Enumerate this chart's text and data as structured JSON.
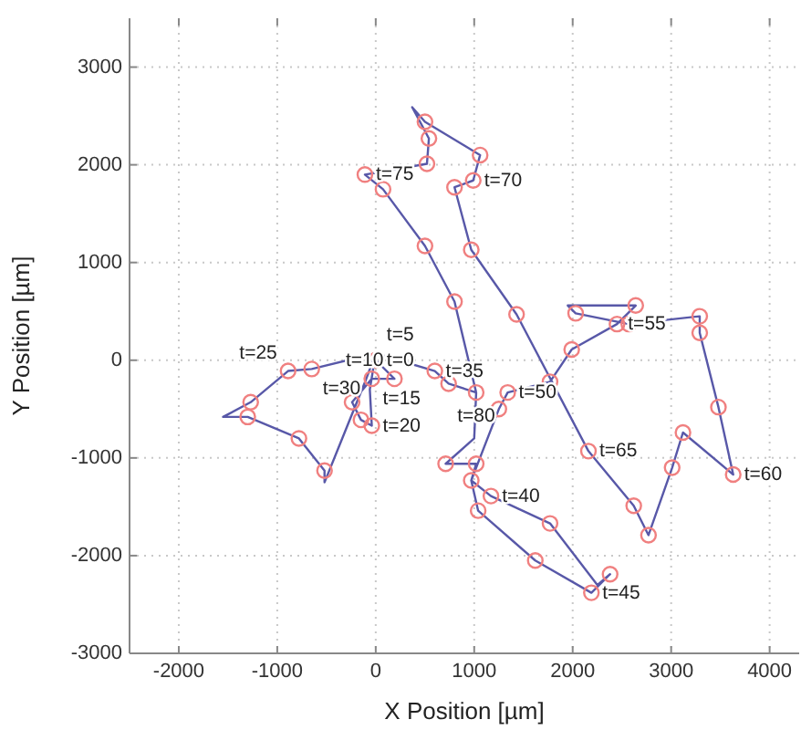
{
  "chart_data": {
    "type": "line",
    "xlabel": "X Position [µm]",
    "ylabel": "Y Position [µm]",
    "xlim": [
      -2500,
      4300
    ],
    "ylim": [
      -3000,
      3500
    ],
    "xticks": [
      -2000,
      -1000,
      0,
      1000,
      2000,
      3000,
      4000
    ],
    "yticks": [
      -3000,
      -2000,
      -1000,
      0,
      1000,
      2000,
      3000
    ],
    "grid": true,
    "series": [
      {
        "color": "#5858a8",
        "marker": "none",
        "line_style": "solid",
        "x": [
          0,
          190,
          -40,
          -240,
          -150,
          -40,
          -60,
          0,
          -650,
          -890,
          -1270,
          -1550,
          -1300,
          -780,
          -520,
          -520,
          -300,
          -100,
          0,
          600,
          740,
          1020,
          1000,
          710,
          1020,
          970,
          1040,
          1620,
          2190,
          2380,
          2250,
          1770,
          1170,
          970,
          1250,
          1340,
          1770,
          1990,
          2450,
          2640,
          1950,
          2030,
          2570,
          3290,
          3290,
          3480,
          3630,
          3120,
          3010,
          2770,
          2620,
          2160,
          1430,
          970,
          800,
          990,
          1060,
          500,
          370,
          540,
          520,
          -110,
          74,
          500,
          800,
          1020
        ],
        "values": [
          0,
          -190,
          -190,
          -430,
          -610,
          -670,
          -300,
          70,
          -90,
          -110,
          -430,
          -580,
          -580,
          -800,
          -1130,
          -1250,
          -700,
          -200,
          70,
          -110,
          -240,
          -330,
          -800,
          -1060,
          -1060,
          -1230,
          -1540,
          -2050,
          -2380,
          -2190,
          -2300,
          -1670,
          -1390,
          -1230,
          -500,
          -330,
          -220,
          110,
          370,
          560,
          560,
          480,
          370,
          450,
          280,
          -480,
          -1170,
          -740,
          -1100,
          -1790,
          -1490,
          -930,
          470,
          1130,
          1770,
          1840,
          2100,
          2440,
          2590,
          2270,
          2010,
          1900,
          1750,
          1170,
          600,
          -330
        ]
      },
      {
        "type": "scatter",
        "color": "#f08080",
        "marker": "circle",
        "x": [
          0,
          190,
          -40,
          -240,
          -150,
          -40,
          -650,
          -890,
          -1270,
          -1300,
          -780,
          -520,
          600,
          740,
          1020,
          1250,
          1340,
          1770,
          1990,
          2030,
          2450,
          2570,
          2640,
          3290,
          3290,
          3480,
          3630,
          3120,
          3010,
          2770,
          2620,
          2160,
          2190,
          2380,
          1620,
          1770,
          1040,
          1170,
          970,
          710,
          1020,
          1430,
          800,
          500,
          970,
          500,
          540,
          1060,
          520,
          -110,
          74,
          800,
          990
        ],
        "values": [
          0,
          -190,
          -190,
          -430,
          -610,
          -670,
          -90,
          -110,
          -430,
          -580,
          -800,
          -1130,
          -110,
          -240,
          -330,
          -500,
          -330,
          -220,
          110,
          480,
          370,
          370,
          560,
          450,
          280,
          -480,
          -1170,
          -740,
          -1100,
          -1790,
          -1490,
          -930,
          -2380,
          -2190,
          -2050,
          -1670,
          -1540,
          -1390,
          -1230,
          -1060,
          -1060,
          470,
          600,
          1170,
          1130,
          2440,
          2270,
          2100,
          2010,
          1900,
          1750,
          1770,
          1840
        ]
      }
    ],
    "annotations": [
      {
        "text": "t=0",
        "x": 0,
        "y": 0
      },
      {
        "text": "t=5",
        "x": 0,
        "y": 70
      },
      {
        "text": "t=10",
        "x": 190,
        "y": -190
      },
      {
        "text": "t=15",
        "x": -40,
        "y": -190
      },
      {
        "text": "t=20",
        "x": -40,
        "y": -670
      },
      {
        "text": "t=25",
        "x": -890,
        "y": -110
      },
      {
        "text": "t=30",
        "x": -650,
        "y": -90
      },
      {
        "text": "t=35",
        "x": 600,
        "y": -110
      },
      {
        "text": "t=40",
        "x": 1170,
        "y": -1390
      },
      {
        "text": "t=45",
        "x": 2190,
        "y": -2380
      },
      {
        "text": "t=50",
        "x": 1340,
        "y": -330
      },
      {
        "text": "t=55",
        "x": 2450,
        "y": 370
      },
      {
        "text": "t=60",
        "x": 3630,
        "y": -1170
      },
      {
        "text": "t=65",
        "x": 2160,
        "y": -930
      },
      {
        "text": "t=70",
        "x": 990,
        "y": 1840
      },
      {
        "text": "t=75",
        "x": -110,
        "y": 1900
      },
      {
        "text": "t=80",
        "x": 1020,
        "y": -330
      }
    ]
  }
}
